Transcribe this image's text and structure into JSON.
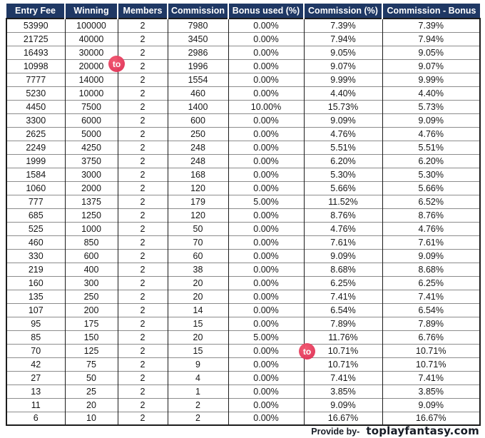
{
  "chart_data": {
    "type": "table",
    "title": "",
    "columns": [
      "Entry Fee",
      "Winning",
      "Members",
      "Commission",
      "Bonus used (%)",
      "Commission (%)",
      "Commission - Bonus"
    ],
    "rows": [
      [
        "53990",
        "100000",
        "2",
        "7980",
        "0.00%",
        "7.39%",
        "7.39%"
      ],
      [
        "21725",
        "40000",
        "2",
        "3450",
        "0.00%",
        "7.94%",
        "7.94%"
      ],
      [
        "16493",
        "30000",
        "2",
        "2986",
        "0.00%",
        "9.05%",
        "9.05%"
      ],
      [
        "10998",
        "20000",
        "2",
        "1996",
        "0.00%",
        "9.07%",
        "9.07%"
      ],
      [
        "7777",
        "14000",
        "2",
        "1554",
        "0.00%",
        "9.99%",
        "9.99%"
      ],
      [
        "5230",
        "10000",
        "2",
        "460",
        "0.00%",
        "4.40%",
        "4.40%"
      ],
      [
        "4450",
        "7500",
        "2",
        "1400",
        "10.00%",
        "15.73%",
        "5.73%"
      ],
      [
        "3300",
        "6000",
        "2",
        "600",
        "0.00%",
        "9.09%",
        "9.09%"
      ],
      [
        "2625",
        "5000",
        "2",
        "250",
        "0.00%",
        "4.76%",
        "4.76%"
      ],
      [
        "2249",
        "4250",
        "2",
        "248",
        "0.00%",
        "5.51%",
        "5.51%"
      ],
      [
        "1999",
        "3750",
        "2",
        "248",
        "0.00%",
        "6.20%",
        "6.20%"
      ],
      [
        "1584",
        "3000",
        "2",
        "168",
        "0.00%",
        "5.30%",
        "5.30%"
      ],
      [
        "1060",
        "2000",
        "2",
        "120",
        "0.00%",
        "5.66%",
        "5.66%"
      ],
      [
        "777",
        "1375",
        "2",
        "179",
        "5.00%",
        "11.52%",
        "6.52%"
      ],
      [
        "685",
        "1250",
        "2",
        "120",
        "0.00%",
        "8.76%",
        "8.76%"
      ],
      [
        "525",
        "1000",
        "2",
        "50",
        "0.00%",
        "4.76%",
        "4.76%"
      ],
      [
        "460",
        "850",
        "2",
        "70",
        "0.00%",
        "7.61%",
        "7.61%"
      ],
      [
        "330",
        "600",
        "2",
        "60",
        "0.00%",
        "9.09%",
        "9.09%"
      ],
      [
        "219",
        "400",
        "2",
        "38",
        "0.00%",
        "8.68%",
        "8.68%"
      ],
      [
        "160",
        "300",
        "2",
        "20",
        "0.00%",
        "6.25%",
        "6.25%"
      ],
      [
        "135",
        "250",
        "2",
        "20",
        "0.00%",
        "7.41%",
        "7.41%"
      ],
      [
        "107",
        "200",
        "2",
        "14",
        "0.00%",
        "6.54%",
        "6.54%"
      ],
      [
        "95",
        "175",
        "2",
        "15",
        "0.00%",
        "7.89%",
        "7.89%"
      ],
      [
        "85",
        "150",
        "2",
        "20",
        "5.00%",
        "11.76%",
        "6.76%"
      ],
      [
        "70",
        "125",
        "2",
        "15",
        "0.00%",
        "10.71%",
        "10.71%"
      ],
      [
        "42",
        "75",
        "2",
        "9",
        "0.00%",
        "10.71%",
        "10.71%"
      ],
      [
        "27",
        "50",
        "2",
        "4",
        "0.00%",
        "7.41%",
        "7.41%"
      ],
      [
        "13",
        "25",
        "2",
        "1",
        "0.00%",
        "3.85%",
        "3.85%"
      ],
      [
        "11",
        "20",
        "2",
        "2",
        "0.00%",
        "9.09%",
        "9.09%"
      ],
      [
        "6",
        "10",
        "2",
        "2",
        "0.00%",
        "16.67%",
        "16.67%"
      ]
    ]
  },
  "watermark": {
    "label": "to"
  },
  "footer": {
    "provide_by": "Provide by-",
    "site": "toplayfantasy.com"
  },
  "colors": {
    "header_bg": "#1f3864",
    "header_text": "#ffffff",
    "badge": "#e73e5f",
    "border_dark": "#1c1c1c",
    "border_light": "#8c8c8c",
    "footer_text": "#171c26"
  }
}
